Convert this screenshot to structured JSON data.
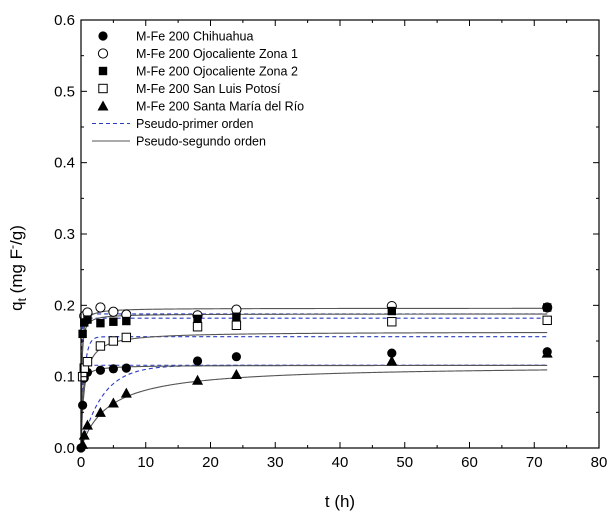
{
  "chart_data": {
    "type": "scatter",
    "title": "",
    "xlabel": "t (h)",
    "ylabel_main": "q",
    "ylabel_sub": "t",
    "ylabel_rest": " (mg F",
    "ylabel_sup": "-",
    "ylabel_end": "/g)",
    "xlim": [
      0,
      80
    ],
    "ylim": [
      0,
      0.6
    ],
    "xticks": [
      0,
      10,
      20,
      30,
      40,
      50,
      60,
      70,
      80
    ],
    "yticks": [
      0.0,
      0.1,
      0.2,
      0.3,
      0.4,
      0.5,
      0.6
    ],
    "grid": false,
    "legend_position": "top-left",
    "series": [
      {
        "name": "M-Fe 200 Chihuahua",
        "marker": "filled-circle",
        "x": [
          0,
          0.25,
          0.5,
          1,
          3,
          5,
          7,
          18,
          24,
          48,
          72
        ],
        "y": [
          0,
          0.06,
          0.098,
          0.106,
          0.109,
          0.111,
          0.112,
          0.122,
          0.128,
          0.133,
          0.135
        ]
      },
      {
        "name": "M-Fe 200 Ojocaliente Zona 1",
        "marker": "open-circle",
        "x": [
          0.5,
          1,
          3,
          5,
          7,
          18,
          24,
          48,
          72
        ],
        "y": [
          0.185,
          0.19,
          0.197,
          0.191,
          0.187,
          0.186,
          0.194,
          0.199,
          0.197
        ]
      },
      {
        "name": "M-Fe 200 Ojocaliente Zona 2",
        "marker": "filled-square",
        "x": [
          0.25,
          0.5,
          1,
          3,
          5,
          7,
          18,
          24,
          48,
          72
        ],
        "y": [
          0.16,
          0.176,
          0.18,
          0.175,
          0.177,
          0.178,
          0.181,
          0.184,
          0.192,
          0.197
        ]
      },
      {
        "name": "M-Fe 200 San Luis Potosí",
        "marker": "open-square",
        "x": [
          0.25,
          0.5,
          1,
          3,
          5,
          7,
          18,
          24,
          48,
          72
        ],
        "y": [
          0.1,
          0.112,
          0.121,
          0.143,
          0.15,
          0.155,
          0.17,
          0.172,
          0.177,
          0.179
        ]
      },
      {
        "name": "M-Fe 200 Santa María del Río",
        "marker": "filled-triangle",
        "x": [
          0.25,
          0.5,
          1,
          3,
          5,
          7,
          18,
          24,
          48,
          72
        ],
        "y": [
          0.005,
          0.018,
          0.032,
          0.05,
          0.063,
          0.077,
          0.095,
          0.103,
          0.122,
          0.133
        ]
      }
    ],
    "model_lines": [
      {
        "name": "Pseudo-primer orden",
        "style": "dashed",
        "color": "#2b3cc4",
        "curves": [
          {
            "qe": 0.116,
            "k": 6.0
          },
          {
            "qe": 0.188,
            "k": 12.0
          },
          {
            "qe": 0.182,
            "k": 8.0
          },
          {
            "qe": 0.156,
            "k": 2.0
          },
          {
            "qe": 0.116,
            "k": 0.3
          }
        ]
      },
      {
        "name": "Pseudo-segundo orden",
        "style": "solid",
        "color": "#555555",
        "curves": [
          {
            "qe": 0.116,
            "k": 60
          },
          {
            "qe": 0.196,
            "k": 60
          },
          {
            "qe": 0.188,
            "k": 60
          },
          {
            "qe": 0.163,
            "k": 12
          },
          {
            "qe": 0.116,
            "k": 2
          }
        ]
      }
    ]
  }
}
